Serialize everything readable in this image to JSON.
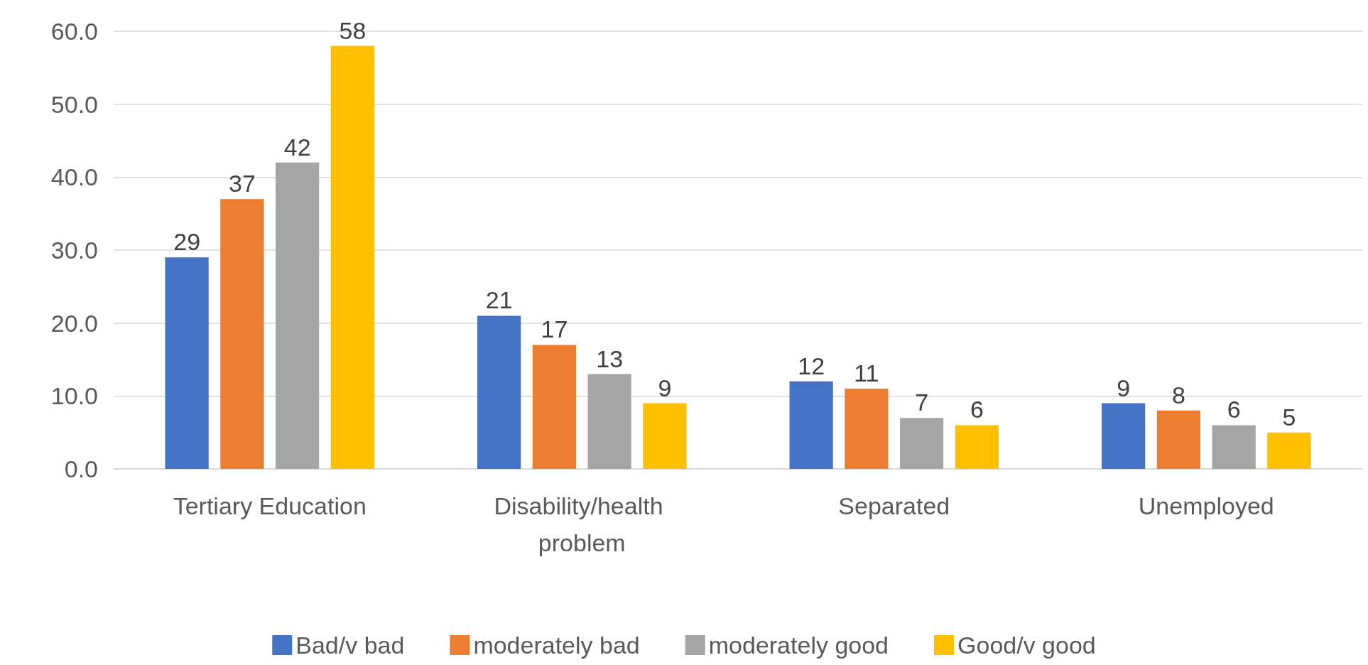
{
  "chart_data": {
    "type": "bar",
    "categories": [
      "Tertiary Education",
      "Disability/health problem",
      "Separated",
      "Unemployed"
    ],
    "series": [
      {
        "name": "Bad/v bad",
        "color": "#4472c4",
        "values": [
          29,
          21,
          12,
          9
        ]
      },
      {
        "name": "moderately bad",
        "color": "#ed7d31",
        "values": [
          37,
          17,
          11,
          8
        ]
      },
      {
        "name": "moderately good",
        "color": "#a5a5a5",
        "values": [
          42,
          13,
          7,
          6
        ]
      },
      {
        "name": "Good/v good",
        "color": "#ffc000",
        "values": [
          58,
          9,
          6,
          5
        ]
      }
    ],
    "ylim": [
      0,
      60
    ],
    "yticks": [
      {
        "value": 0,
        "label": "0.0"
      },
      {
        "value": 10,
        "label": "10.0"
      },
      {
        "value": 20,
        "label": "20.0"
      },
      {
        "value": 30,
        "label": "30.0"
      },
      {
        "value": 40,
        "label": "40.0"
      },
      {
        "value": 50,
        "label": "50.0"
      },
      {
        "value": 60,
        "label": "60.0"
      }
    ],
    "grid": "y",
    "legend": "bottom",
    "data_labels": true
  }
}
